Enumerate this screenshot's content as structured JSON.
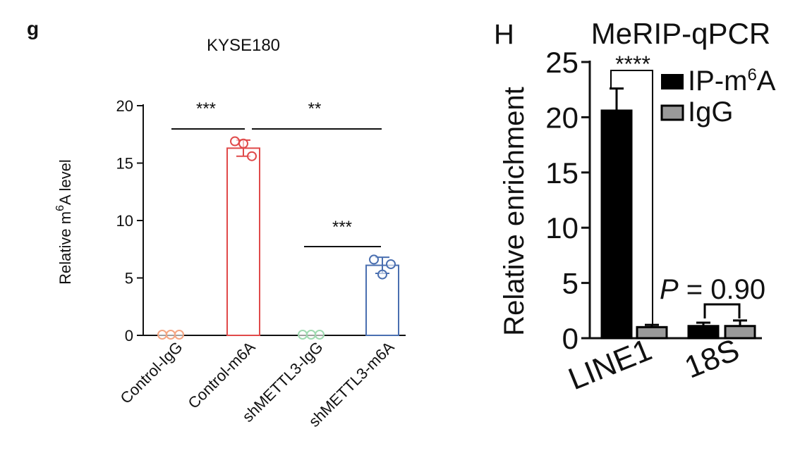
{
  "panels": {
    "left_label": "g",
    "right_label": "H"
  },
  "colors": {
    "axis": "#111111",
    "control_igg": "#f4a582",
    "control_m6a": "#e04a4a",
    "sh_igg": "#9fd9b0",
    "sh_m6a": "#4a6fb0",
    "ip_bar": "#000000",
    "igg_bar": "#9a9a9a"
  },
  "chart_data": [
    {
      "type": "bar",
      "title": "KYSE180",
      "ylabel_main": "Relative m",
      "ylabel_sup": "6",
      "ylabel_tail": "A level",
      "ylim": [
        0,
        20
      ],
      "yticks": [
        "0",
        "5",
        "10",
        "15",
        "20"
      ],
      "categories": [
        "Control-IgG",
        "Control-m6A",
        "shMETTL3-IgG",
        "shMETTL3-m6A"
      ],
      "values": [
        0,
        16.3,
        0,
        6.1
      ],
      "errors": [
        0,
        0.7,
        0,
        0.7
      ],
      "points": [
        [
          0,
          0,
          0
        ],
        [
          16.9,
          16.7,
          15.6
        ],
        [
          0,
          0,
          0
        ],
        [
          6.6,
          5.3,
          6.2
        ]
      ],
      "significance": [
        {
          "from": 0,
          "to": 1,
          "label": "***",
          "y": 18
        },
        {
          "from": 1,
          "to": 3,
          "label": "**",
          "y": 18
        },
        {
          "from": 2,
          "to": 3,
          "label": "***",
          "y": 7.7
        }
      ]
    },
    {
      "type": "bar",
      "title": "MeRIP-qPCR",
      "ylabel": "Relative enrichment",
      "ylim": [
        0,
        25
      ],
      "yticks": [
        "0",
        "5",
        "10",
        "15",
        "20",
        "25"
      ],
      "categories": [
        "LINE1",
        "18S"
      ],
      "series": [
        {
          "name": "IP-m6A",
          "legend_main": "IP-m",
          "legend_sup": "6",
          "legend_tail": "A",
          "values": [
            20.6,
            1.1
          ],
          "errors": [
            2.0,
            0.3
          ]
        },
        {
          "name": "IgG",
          "legend_main": "IgG",
          "legend_sup": "",
          "legend_tail": "",
          "values": [
            1.0,
            1.1
          ],
          "errors": [
            0.2,
            0.5
          ]
        }
      ],
      "legend": "top-right",
      "significance": [
        {
          "category": 0,
          "label": "****"
        },
        {
          "category": 1,
          "label_italic": "P",
          "label_rest": " = 0.90"
        }
      ]
    }
  ]
}
